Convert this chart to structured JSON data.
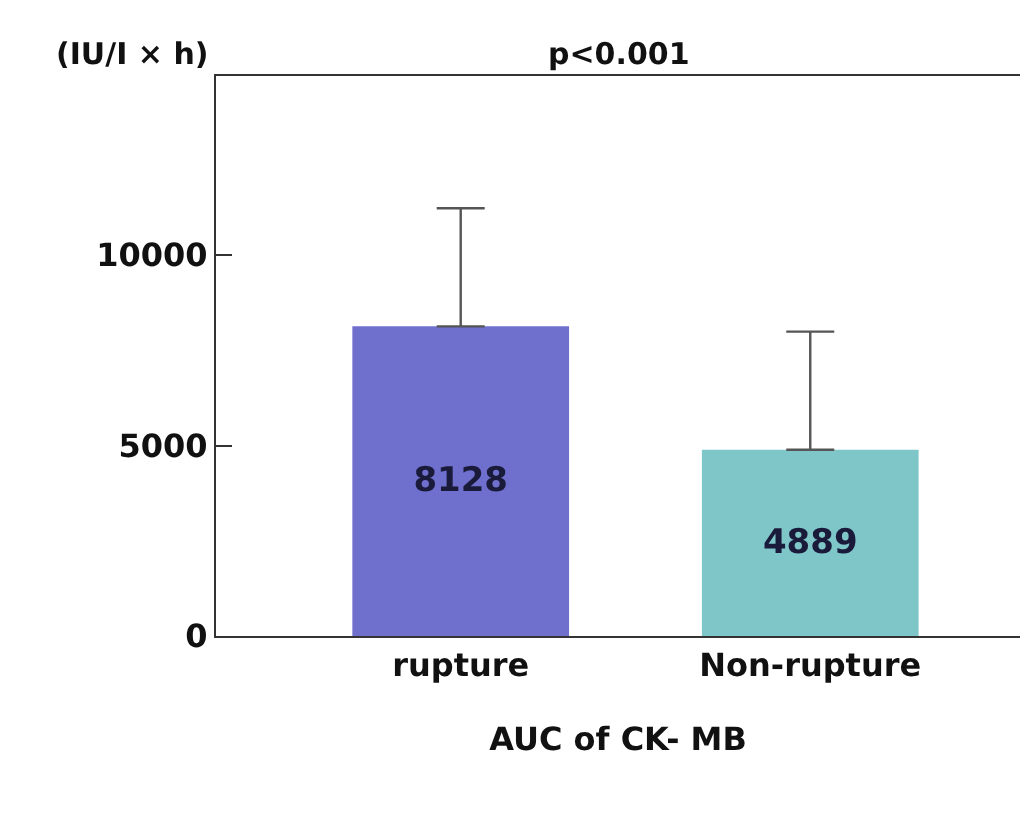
{
  "chart_data": {
    "type": "bar",
    "categories": [
      "rupture",
      "Non-rupture"
    ],
    "values": [
      8128,
      4889
    ],
    "colors": [
      "#6f6fce",
      "#7fc6c8"
    ],
    "errors": [
      [
        8128,
        11228
      ],
      [
        4889,
        7989
      ]
    ],
    "ylim": [
      0,
      14700
    ],
    "yticks": [
      0,
      5000,
      10000
    ],
    "ylabel": "(IU/I × h)",
    "xlabel": "AUC of CK- MB",
    "annotations": [
      "p<0.001"
    ],
    "data_labels": true,
    "grid": false,
    "legend": false
  }
}
